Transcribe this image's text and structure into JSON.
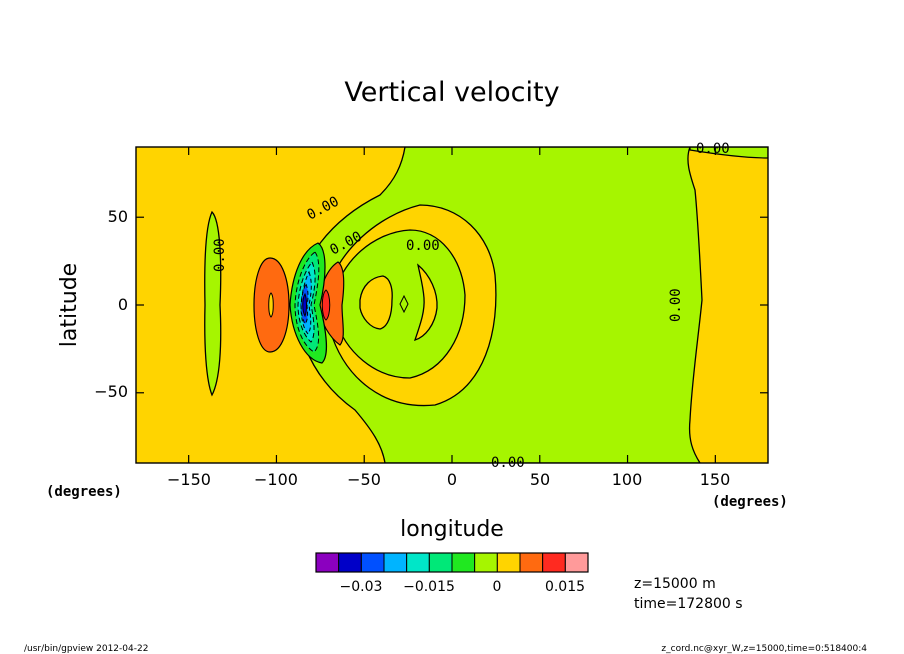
{
  "chart_data": {
    "type": "contour",
    "title": "Vertical velocity",
    "xlabel": "longitude",
    "ylabel": "latitude",
    "x_unit": "(degrees)",
    "y_unit": "(degrees)",
    "xlim": [
      -180,
      180
    ],
    "ylim": [
      -90,
      90
    ],
    "x_ticks": [
      -150,
      -100,
      -50,
      0,
      50,
      100,
      150
    ],
    "y_ticks": [
      -50,
      0,
      50
    ],
    "x_tick_labels": [
      "−150",
      "−100",
      "−50",
      "0",
      "50",
      "100",
      "150"
    ],
    "y_tick_labels": [
      "−50",
      "0",
      "50"
    ],
    "contour_labels": [
      "0.00",
      "0.00",
      "0.00",
      "0.00",
      "0.00",
      "0.00",
      "0.00"
    ],
    "colorbar": {
      "colors": [
        "#8b00bf",
        "#0000c8",
        "#0050ff",
        "#00b4ff",
        "#00e6c8",
        "#00e878",
        "#20e820",
        "#a6f500",
        "#ffd400",
        "#ff6a10",
        "#ff2a20",
        "#ff9a9a"
      ],
      "tick_values": [
        -0.03,
        -0.015,
        0,
        0.015
      ],
      "tick_labels": [
        "−0.03",
        "−0.015",
        "0",
        "0.015"
      ]
    },
    "annotations": [
      "z=15000  m",
      "time=172800  s"
    ],
    "footer_left": "/usr/bin/gpview   2012-04-22",
    "footer_right": "z_cord.nc@xyr_W,z=15000,time=0:518400:4"
  }
}
